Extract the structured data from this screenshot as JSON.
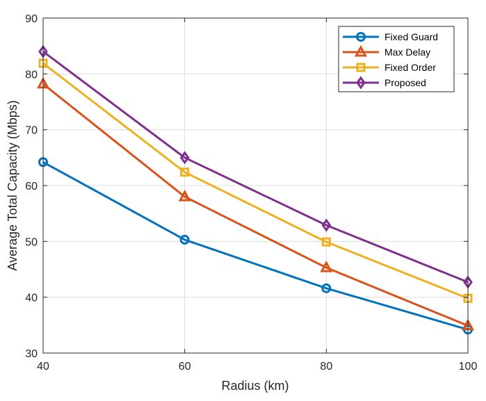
{
  "chart_data": {
    "type": "line",
    "title": "",
    "xlabel": "Radius (km)",
    "ylabel": "Average Total Capacity (Mbps)",
    "x": [
      40,
      60,
      80,
      100
    ],
    "xlim": [
      40,
      100
    ],
    "ylim": [
      30,
      90
    ],
    "xticks": [
      "40",
      "60",
      "80",
      "100"
    ],
    "yticks": [
      "30",
      "40",
      "50",
      "60",
      "70",
      "80",
      "90"
    ],
    "grid": true,
    "legend_position": "top-right",
    "series": [
      {
        "name": "Fixed Guard",
        "values": [
          64.2,
          50.3,
          41.6,
          34.2
        ],
        "color": "#0072BD",
        "marker": "circle"
      },
      {
        "name": "Max Delay",
        "values": [
          78.2,
          58.0,
          45.3,
          34.9
        ],
        "color": "#D95319",
        "marker": "triangle"
      },
      {
        "name": "Fixed Order",
        "values": [
          81.9,
          62.4,
          49.9,
          39.8
        ],
        "color": "#EDB120",
        "marker": "square"
      },
      {
        "name": "Proposed",
        "values": [
          84.0,
          65.0,
          52.9,
          42.7
        ],
        "color": "#7E2F8E",
        "marker": "diamond"
      }
    ]
  }
}
